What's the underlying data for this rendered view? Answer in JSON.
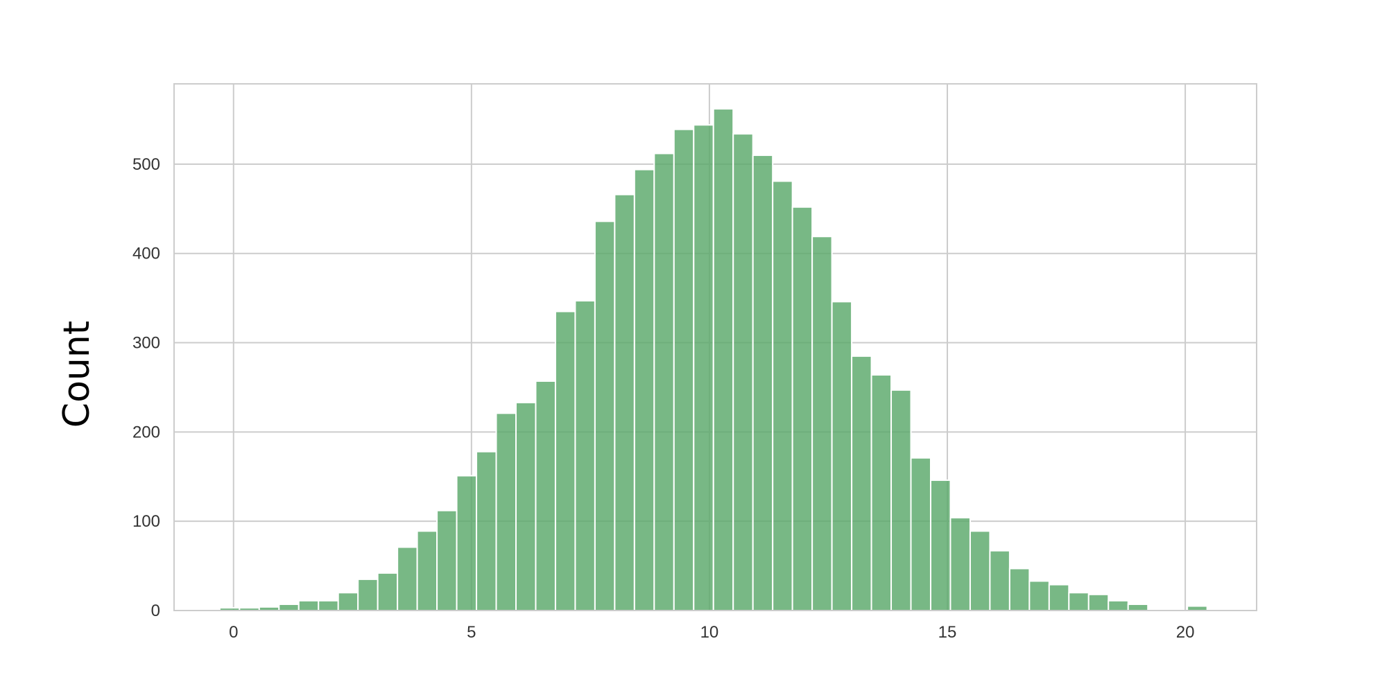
{
  "chart_data": {
    "type": "bar",
    "title": "",
    "xlabel": "",
    "ylabel": "Count",
    "bin_width": 0.415,
    "bin_starts": [
      -0.29,
      0.125,
      0.54,
      0.955,
      1.37,
      1.785,
      2.2,
      2.615,
      3.03,
      3.445,
      3.86,
      4.275,
      4.69,
      5.105,
      5.52,
      5.935,
      6.35,
      6.765,
      7.18,
      7.595,
      8.01,
      8.425,
      8.84,
      9.255,
      9.67,
      10.085,
      10.5,
      10.915,
      11.33,
      11.745,
      12.16,
      12.575,
      12.99,
      13.405,
      13.82,
      14.235,
      14.65,
      15.065,
      15.48,
      15.895,
      16.31,
      16.725,
      17.14,
      17.555,
      17.97,
      18.385,
      18.8,
      19.215,
      19.63,
      20.045
    ],
    "values": [
      3,
      3,
      4,
      7,
      11,
      11,
      20,
      35,
      42,
      71,
      89,
      112,
      151,
      178,
      221,
      233,
      257,
      335,
      347,
      436,
      466,
      494,
      512,
      539,
      544,
      562,
      534,
      510,
      481,
      452,
      419,
      346,
      285,
      264,
      247,
      171,
      146,
      104,
      89,
      67,
      47,
      33,
      29,
      20,
      18,
      11,
      7,
      0,
      0,
      5
    ],
    "color": "#5aa86a",
    "edge_color": "#ffffff",
    "xlim": [
      -1.25,
      21.5
    ],
    "ylim": [
      0,
      590
    ],
    "x_ticks": [
      0,
      5,
      10,
      15,
      20
    ],
    "x_tick_labels": [
      "0",
      "5",
      "10",
      "15",
      "20"
    ],
    "y_ticks": [
      0,
      100,
      200,
      300,
      400,
      500
    ],
    "y_tick_labels": [
      "0",
      "100",
      "200",
      "300",
      "400",
      "500"
    ],
    "grid": true,
    "grid_color": "#cccccc"
  }
}
